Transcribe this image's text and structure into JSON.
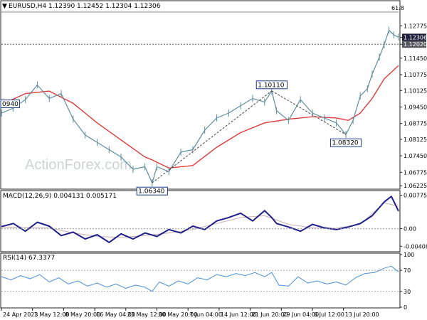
{
  "chart_data": [
    {
      "type": "candlestick",
      "title": "EURUSD,H4 1.12390 1.12452 1.12304 1.12306",
      "watermark": "ActionForex.com",
      "ylim": [
        1.062,
        1.1325
      ],
      "y_ticks": [
        "1.12775",
        "1.12306",
        "1.12020",
        "1.11450",
        "1.10775",
        "1.10125",
        "1.09450",
        "1.08775",
        "1.08125",
        "1.07450",
        "1.06775",
        "1.06225"
      ],
      "price_markers": {
        "current": "1.12306",
        "reference": "1.12020",
        "current_value": 1.12306,
        "reference_value": 1.1202
      },
      "fib_label": "61.8",
      "annotations": [
        {
          "label": "0940",
          "x": 0.0,
          "y": 1.0933
        },
        {
          "label": "1.06340",
          "x": 63.0,
          "y": 1.0634
        },
        {
          "label": "1.10110",
          "x": 113.0,
          "y": 1.1011
        },
        {
          "label": "1.08320",
          "x": 144.0,
          "y": 1.0832
        }
      ],
      "trend_lines": [
        {
          "from": [
            63.0,
            1.0634
          ],
          "to": [
            113.0,
            1.1011
          ]
        },
        {
          "from": [
            113.0,
            1.1011
          ],
          "to": [
            144.0,
            1.0832
          ]
        }
      ],
      "series": [
        {
          "name": "Price",
          "color": "#5f8ea0",
          "x": [
            0,
            5,
            10,
            15,
            20,
            25,
            30,
            35,
            40,
            45,
            50,
            55,
            60,
            63,
            65,
            70,
            75,
            80,
            85,
            90,
            95,
            100,
            105,
            110,
            113,
            115,
            120,
            125,
            130,
            135,
            140,
            144,
            147,
            150,
            153,
            155,
            158,
            160,
            162,
            164,
            166
          ],
          "y": [
            1.092,
            1.094,
            1.0975,
            1.1035,
            1.098,
            1.1,
            1.0895,
            1.083,
            1.08,
            1.077,
            1.074,
            1.069,
            1.07,
            1.0634,
            1.07,
            1.068,
            1.076,
            1.077,
            1.085,
            1.09,
            1.092,
            1.095,
            1.098,
            1.0965,
            1.1011,
            1.093,
            1.089,
            1.0975,
            1.092,
            1.09,
            1.088,
            1.0832,
            1.089,
            1.099,
            1.102,
            1.108,
            1.115,
            1.12,
            1.126,
            1.124,
            1.1231
          ]
        },
        {
          "name": "MA",
          "color": "#e03a3a",
          "x": [
            0,
            10,
            20,
            30,
            40,
            50,
            60,
            63,
            70,
            80,
            90,
            100,
            110,
            120,
            130,
            140,
            145,
            150,
            155,
            160,
            166
          ],
          "y": [
            1.0955,
            1.1,
            1.101,
            1.096,
            1.088,
            1.081,
            1.074,
            1.0728,
            1.0695,
            1.0705,
            1.078,
            1.084,
            1.088,
            1.0895,
            1.0905,
            1.09,
            1.089,
            1.092,
            1.098,
            1.106,
            1.1115
          ]
        }
      ]
    },
    {
      "type": "line",
      "title": "MACD(12,26,9) 0.004131 0.005171",
      "ylim": [
        -0.0047,
        0.0082
      ],
      "y_ticks": [
        "0.007756",
        "0.00",
        "-0.004086"
      ],
      "series": [
        {
          "name": "MACD",
          "color": "#1e1e8c",
          "x": [
            0,
            5,
            10,
            15,
            20,
            25,
            30,
            35,
            40,
            45,
            50,
            55,
            60,
            65,
            70,
            75,
            80,
            85,
            90,
            95,
            100,
            105,
            110,
            113,
            115,
            120,
            125,
            130,
            135,
            140,
            145,
            150,
            155,
            160,
            163,
            166
          ],
          "y": [
            0.0005,
            0.0012,
            -0.0006,
            0.0015,
            0.0006,
            -0.0016,
            -0.0008,
            -0.0024,
            -0.0014,
            -0.0032,
            -0.0012,
            -0.0024,
            -0.001,
            -0.0018,
            -0.0002,
            -0.001,
            0.0006,
            -0.0002,
            0.0018,
            0.0026,
            0.0036,
            0.0018,
            0.0042,
            0.0026,
            0.0012,
            0.0004,
            -0.0006,
            0.001,
            0.0002,
            -0.0002,
            0.0004,
            0.0012,
            0.003,
            0.0062,
            0.0075,
            0.0041
          ]
        },
        {
          "name": "Signal",
          "color": "#c9aeae",
          "x": [
            0,
            10,
            20,
            30,
            40,
            50,
            60,
            70,
            80,
            90,
            100,
            110,
            120,
            130,
            140,
            150,
            160,
            166
          ],
          "y": [
            0.0004,
            0.0003,
            0.0002,
            -0.001,
            -0.0018,
            -0.002,
            -0.0016,
            -0.001,
            -0.0002,
            0.0012,
            0.0026,
            0.003,
            0.001,
            0.0002,
            0.0001,
            0.001,
            0.006,
            0.0052
          ]
        }
      ]
    },
    {
      "type": "line",
      "title": "RSI(14) 67.3377",
      "ylim": [
        0,
        100
      ],
      "y_ticks": [
        "100",
        "70",
        "30",
        "0"
      ],
      "levels": [
        70,
        30
      ],
      "series": [
        {
          "name": "RSI",
          "color": "#4a8fd8",
          "x": [
            0,
            4,
            8,
            12,
            16,
            20,
            24,
            28,
            32,
            36,
            40,
            44,
            48,
            52,
            56,
            60,
            63,
            66,
            70,
            74,
            78,
            82,
            86,
            90,
            94,
            98,
            102,
            106,
            110,
            113,
            116,
            120,
            124,
            128,
            132,
            136,
            140,
            144,
            148,
            152,
            156,
            160,
            163,
            166
          ],
          "y": [
            58,
            52,
            60,
            54,
            62,
            48,
            56,
            44,
            50,
            40,
            46,
            38,
            44,
            36,
            42,
            38,
            30,
            48,
            40,
            50,
            44,
            56,
            52,
            62,
            58,
            64,
            60,
            66,
            58,
            66,
            42,
            40,
            58,
            46,
            50,
            44,
            48,
            42,
            56,
            64,
            66,
            74,
            78,
            67
          ]
        }
      ]
    }
  ],
  "x_axis": {
    "min": 0,
    "max": 166,
    "ticks": [
      {
        "x": 0,
        "label": "24 Apr 2023"
      },
      {
        "x": 13,
        "label": "1 May 12:00"
      },
      {
        "x": 26,
        "label": "8 May 20:00"
      },
      {
        "x": 39,
        "label": "16 May 04:00"
      },
      {
        "x": 52,
        "label": "23 May 12:00"
      },
      {
        "x": 65,
        "label": "30 May 20:00"
      },
      {
        "x": 78,
        "label": "7 Jun 04:00"
      },
      {
        "x": 91,
        "label": "14 Jun 12:00"
      },
      {
        "x": 104,
        "label": "21 Jun 20:00"
      },
      {
        "x": 117,
        "label": "29 Jun 04:00"
      },
      {
        "x": 130,
        "label": "6 Jul 12:00"
      },
      {
        "x": 143,
        "label": "13 Jul 20:00"
      }
    ]
  }
}
